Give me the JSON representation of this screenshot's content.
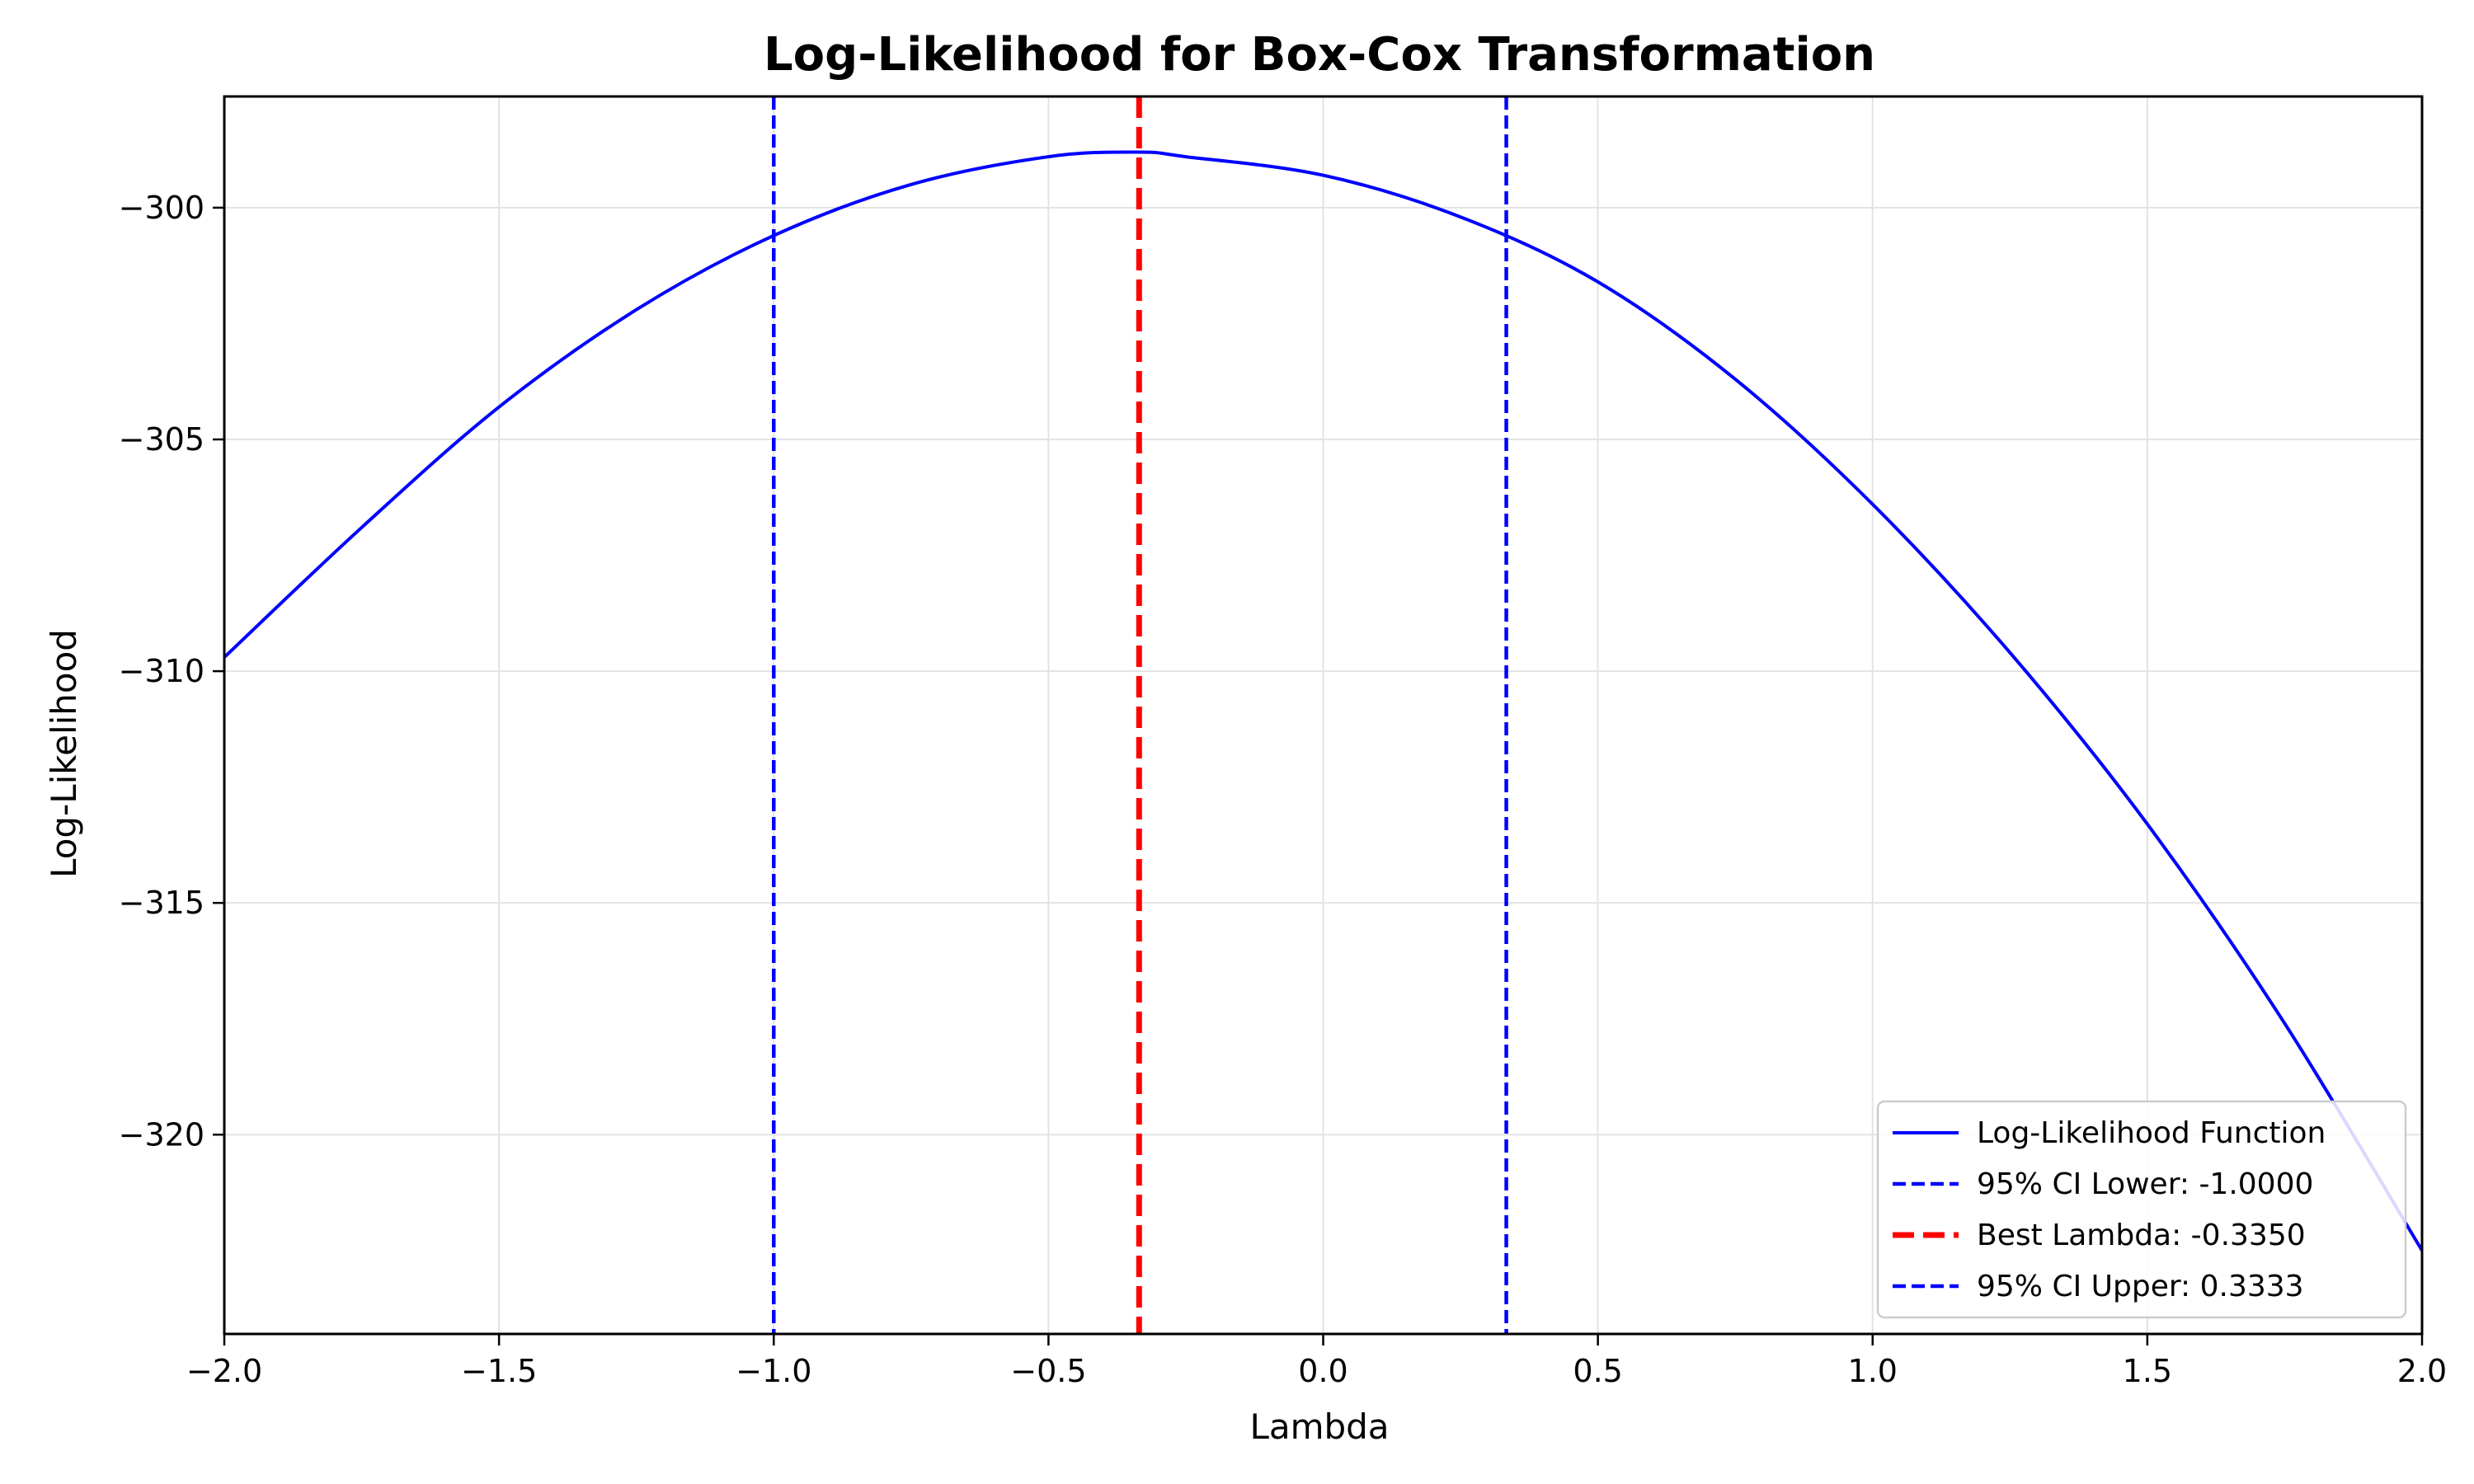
{
  "chart_data": {
    "type": "line",
    "title": "Log-Likelihood for Box-Cox Transformation",
    "xlabel": "Lambda",
    "ylabel": "Log-Likelihood",
    "xlim": [
      -2.0,
      2.0
    ],
    "ylim": [
      -324.3,
      -297.6
    ],
    "x_ticks": [
      -2.0,
      -1.5,
      -1.0,
      -0.5,
      0.0,
      0.5,
      1.0,
      1.5,
      2.0
    ],
    "x_tick_labels": [
      "−2.0",
      "−1.5",
      "−1.0",
      "−0.5",
      "0.0",
      "0.5",
      "1.0",
      "1.5",
      "2.0"
    ],
    "y_ticks": [
      -300,
      -305,
      -310,
      -315,
      -320
    ],
    "y_tick_labels": [
      "−300",
      "−305",
      "−310",
      "−315",
      "−320"
    ],
    "grid": true,
    "legend_position": "lower-right",
    "series": [
      {
        "name": "Log-Likelihood Function",
        "kind": "line",
        "color": "#0000ff",
        "x": [
          -2.0,
          -1.75,
          -1.5,
          -1.25,
          -1.0,
          -0.75,
          -0.5,
          -0.335,
          -0.25,
          0.0,
          0.25,
          0.5,
          0.75,
          1.0,
          1.25,
          1.5,
          1.75,
          2.0
        ],
        "y": [
          -309.7,
          -306.9,
          -304.3,
          -302.2,
          -300.6,
          -299.5,
          -298.9,
          -298.8,
          -298.9,
          -299.3,
          -300.2,
          -301.6,
          -303.7,
          -306.4,
          -309.6,
          -313.3,
          -317.6,
          -322.5
        ]
      },
      {
        "name": "95% CI Lower: -1.0000",
        "kind": "vline",
        "x": -1.0,
        "color": "#0000ff"
      },
      {
        "name": "Best Lambda: -0.3350",
        "kind": "vline",
        "x": -0.335,
        "color": "#ff0000"
      },
      {
        "name": "95% CI Upper: 0.3333",
        "kind": "vline",
        "x": 0.3333,
        "color": "#0000ff"
      }
    ]
  }
}
